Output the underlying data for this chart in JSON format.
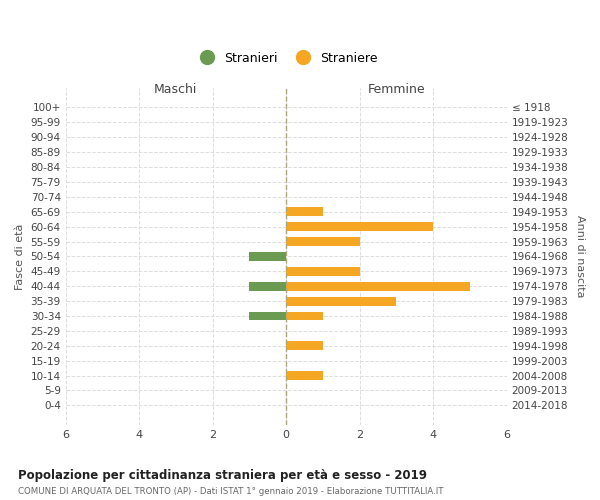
{
  "age_groups": [
    "100+",
    "95-99",
    "90-94",
    "85-89",
    "80-84",
    "75-79",
    "70-74",
    "65-69",
    "60-64",
    "55-59",
    "50-54",
    "45-49",
    "40-44",
    "35-39",
    "30-34",
    "25-29",
    "20-24",
    "15-19",
    "10-14",
    "5-9",
    "0-4"
  ],
  "birth_years": [
    "≤ 1918",
    "1919-1923",
    "1924-1928",
    "1929-1933",
    "1934-1938",
    "1939-1943",
    "1944-1948",
    "1949-1953",
    "1954-1958",
    "1959-1963",
    "1964-1968",
    "1969-1973",
    "1974-1978",
    "1979-1983",
    "1984-1988",
    "1989-1993",
    "1994-1998",
    "1999-2003",
    "2004-2008",
    "2009-2013",
    "2014-2018"
  ],
  "males": [
    0,
    0,
    0,
    0,
    0,
    0,
    0,
    0,
    0,
    0,
    -1,
    0,
    -1,
    0,
    -1,
    0,
    0,
    0,
    0,
    0,
    0
  ],
  "females": [
    0,
    0,
    0,
    0,
    0,
    0,
    0,
    1,
    4,
    2,
    0,
    2,
    5,
    3,
    1,
    0,
    1,
    0,
    1,
    0,
    0
  ],
  "male_color": "#6b9a52",
  "female_color": "#f5a623",
  "male_label": "Stranieri",
  "female_label": "Straniere",
  "title": "Popolazione per cittadinanza straniera per età e sesso - 2019",
  "subtitle": "COMUNE DI ARQUATA DEL TRONTO (AP) - Dati ISTAT 1° gennaio 2019 - Elaborazione TUTTITALIA.IT",
  "xlabel_left": "Maschi",
  "xlabel_right": "Femmine",
  "ylabel_left": "Fasce di età",
  "ylabel_right": "Anni di nascita",
  "xlim": 6,
  "background_color": "#ffffff",
  "grid_color": "#dddddd"
}
